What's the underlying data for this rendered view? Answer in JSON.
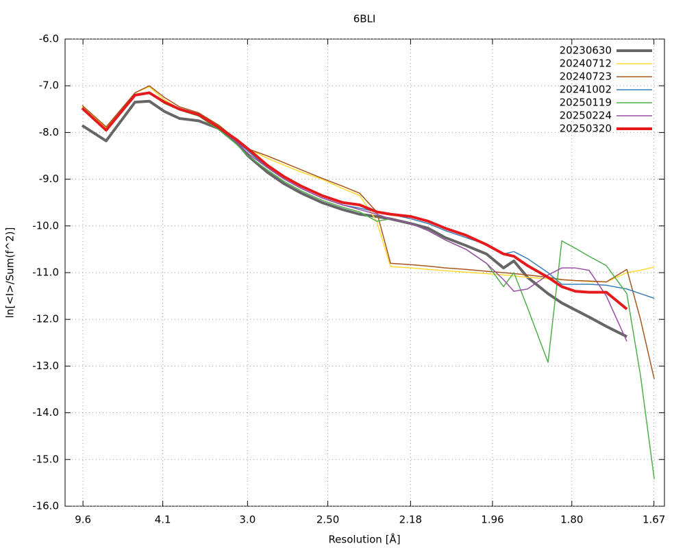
{
  "chart_data": {
    "type": "line",
    "title": "6BLI",
    "x_label": "Resolution [Å]",
    "y_label": "ln[<I>/Sum(f^2)]",
    "grid": true,
    "legend": "upper right",
    "xlim": [
      0,
      0.365
    ],
    "ylim": [
      -16,
      -6
    ],
    "xticks": [
      {
        "value": 0.0109,
        "label": "9.6"
      },
      {
        "value": 0.0595,
        "label": "4.1"
      },
      {
        "value": 0.1111,
        "label": "3.0"
      },
      {
        "value": 0.16,
        "label": "2.50"
      },
      {
        "value": 0.2104,
        "label": "2.18"
      },
      {
        "value": 0.2603,
        "label": "1.96"
      },
      {
        "value": 0.3086,
        "label": "1.80"
      },
      {
        "value": 0.3586,
        "label": "1.67"
      }
    ],
    "yticks": [
      {
        "value": -6,
        "label": "-6.0"
      },
      {
        "value": -7,
        "label": "-7.0"
      },
      {
        "value": -8,
        "label": "-8.0"
      },
      {
        "value": -9,
        "label": "-9.0"
      },
      {
        "value": -10,
        "label": "-10.0"
      },
      {
        "value": -11,
        "label": "-11.0"
      },
      {
        "value": -12,
        "label": "-12.0"
      },
      {
        "value": -13,
        "label": "-13.0"
      },
      {
        "value": -14,
        "label": "-14.0"
      },
      {
        "value": -15,
        "label": "-15.0"
      },
      {
        "value": -16,
        "label": "-16.0"
      }
    ],
    "x": [
      0.0104,
      0.025,
      0.0426,
      0.0513,
      0.0605,
      0.0697,
      0.0814,
      0.0939,
      0.1043,
      0.1114,
      0.1231,
      0.1335,
      0.1439,
      0.1564,
      0.169,
      0.1794,
      0.1898,
      0.1982,
      0.2107,
      0.2211,
      0.2315,
      0.2441,
      0.2566,
      0.267,
      0.2733,
      0.2816,
      0.2941,
      0.3025,
      0.3108,
      0.3191,
      0.3296,
      0.3421,
      0.3504,
      0.3588
    ],
    "series": [
      {
        "name": "20230630",
        "color": "#666666",
        "width": 4,
        "values": [
          -7.85,
          -8.18,
          -7.35,
          -7.33,
          -7.55,
          -7.7,
          -7.75,
          -7.92,
          -8.2,
          -8.5,
          -8.85,
          -9.1,
          -9.3,
          -9.5,
          -9.65,
          -9.75,
          -9.8,
          -9.85,
          -9.95,
          -10.05,
          -10.25,
          -10.42,
          -10.6,
          -10.9,
          -10.75,
          -11.1,
          -11.45,
          -11.65,
          -11.8,
          -11.95,
          -12.15,
          -12.37,
          null,
          null
        ]
      },
      {
        "name": "20240712",
        "color": "#ffd92f",
        "width": 1.5,
        "values": [
          -7.45,
          -7.9,
          -7.15,
          -7.02,
          -7.3,
          -7.5,
          -7.6,
          -7.85,
          -8.15,
          -8.35,
          -8.55,
          -8.7,
          -8.85,
          -9.0,
          -9.2,
          -9.35,
          -9.9,
          -10.87,
          -10.9,
          -10.93,
          -10.96,
          -10.99,
          -11.02,
          -11.05,
          -11.07,
          -11.1,
          -11.13,
          -11.15,
          -11.17,
          -11.19,
          -11.2,
          -11.0,
          -10.95,
          -10.88
        ]
      },
      {
        "name": "20240723",
        "color": "#a6561d",
        "width": 1.5,
        "values": [
          -7.42,
          -7.88,
          -7.15,
          -7.0,
          -7.25,
          -7.45,
          -7.58,
          -7.85,
          -8.15,
          -8.35,
          -8.5,
          -8.65,
          -8.8,
          -8.98,
          -9.15,
          -9.3,
          -9.7,
          -10.8,
          -10.83,
          -10.86,
          -10.9,
          -10.93,
          -10.97,
          -11.0,
          -11.02,
          -11.05,
          -11.1,
          -11.15,
          -11.17,
          -11.18,
          -11.2,
          -10.93,
          -12.0,
          -13.28
        ]
      },
      {
        "name": "20241002",
        "color": "#377eb8",
        "width": 1.5,
        "values": [
          -7.48,
          -7.95,
          -7.2,
          -7.15,
          -7.35,
          -7.5,
          -7.62,
          -7.9,
          -8.18,
          -8.4,
          -8.75,
          -9.0,
          -9.2,
          -9.4,
          -9.55,
          -9.62,
          -9.7,
          -9.75,
          -9.85,
          -9.95,
          -10.1,
          -10.25,
          -10.4,
          -10.6,
          -10.55,
          -10.7,
          -11.0,
          -11.25,
          -11.25,
          -11.25,
          -11.27,
          -11.35,
          -11.45,
          -11.55
        ]
      },
      {
        "name": "20250119",
        "color": "#4daf4a",
        "width": 1.5,
        "values": [
          -7.48,
          -7.95,
          -7.2,
          -7.15,
          -7.38,
          -7.52,
          -7.65,
          -7.95,
          -8.25,
          -8.5,
          -8.8,
          -9.05,
          -9.25,
          -9.45,
          -9.6,
          -9.7,
          -9.9,
          -9.85,
          -9.95,
          -10.1,
          -10.3,
          -10.5,
          -10.8,
          -11.3,
          -11.0,
          -11.75,
          -12.92,
          -10.32,
          -10.48,
          -10.65,
          -10.85,
          -11.45,
          -13.2,
          -15.42
        ]
      },
      {
        "name": "20250224",
        "color": "#984ea3",
        "width": 1.5,
        "values": [
          -7.48,
          -7.95,
          -7.2,
          -7.15,
          -7.35,
          -7.52,
          -7.62,
          -7.9,
          -8.2,
          -8.45,
          -8.75,
          -9.0,
          -9.2,
          -9.4,
          -9.55,
          -9.65,
          -9.75,
          -9.85,
          -9.95,
          -10.1,
          -10.3,
          -10.5,
          -10.8,
          -11.15,
          -11.4,
          -11.35,
          -11.05,
          -10.9,
          -10.9,
          -10.95,
          -11.5,
          -12.47,
          null,
          null
        ]
      },
      {
        "name": "20250320",
        "color": "#e41a1c",
        "width": 4,
        "values": [
          -7.48,
          -7.95,
          -7.2,
          -7.15,
          -7.35,
          -7.5,
          -7.62,
          -7.9,
          -8.15,
          -8.35,
          -8.7,
          -8.95,
          -9.15,
          -9.35,
          -9.5,
          -9.55,
          -9.7,
          -9.75,
          -9.8,
          -9.9,
          -10.05,
          -10.2,
          -10.4,
          -10.6,
          -10.65,
          -10.85,
          -11.1,
          -11.3,
          -11.4,
          -11.42,
          -11.42,
          -11.78,
          null,
          null
        ]
      }
    ]
  }
}
